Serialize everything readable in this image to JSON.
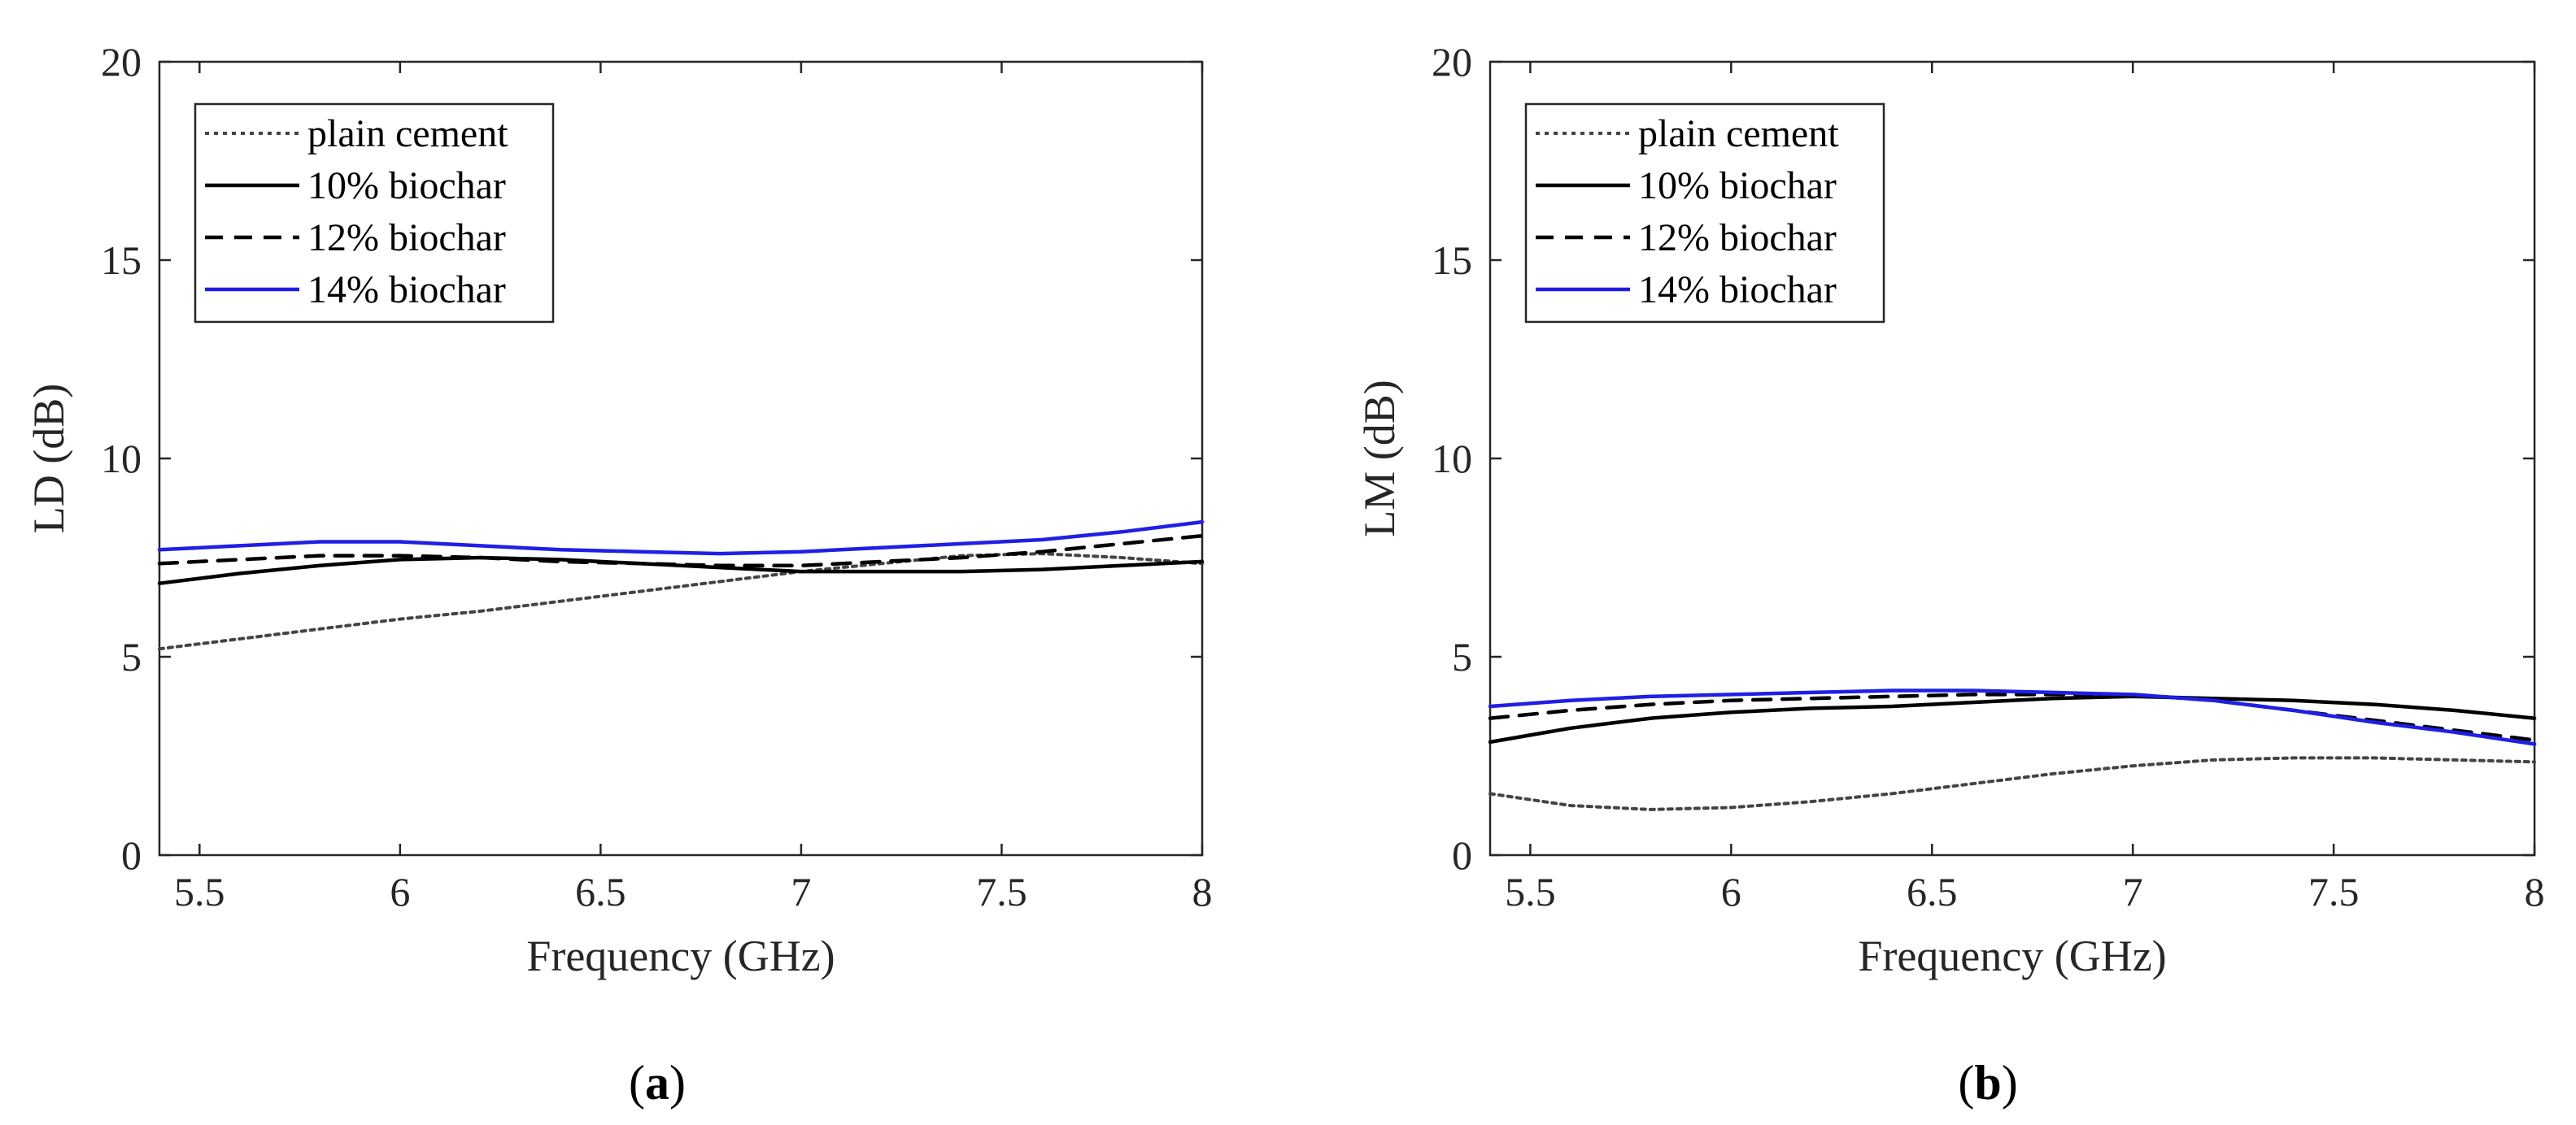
{
  "chart_data": [
    {
      "type": "line",
      "panel": "a",
      "caption": "a",
      "xlabel": "Frequency (GHz)",
      "ylabel": "LD (dB)",
      "xlim": [
        5.4,
        8
      ],
      "ylim": [
        0,
        20
      ],
      "xticks": [
        "5.5",
        "6",
        "6.5",
        "7",
        "7.5",
        "8"
      ],
      "yticks": [
        "0",
        "5",
        "10",
        "15",
        "20"
      ],
      "legend_position": "top-left",
      "x": [
        5.4,
        5.6,
        5.8,
        6.0,
        6.2,
        6.4,
        6.6,
        6.8,
        7.0,
        7.2,
        7.4,
        7.6,
        7.8,
        8.0
      ],
      "series": [
        {
          "name": "plain cement",
          "style": "dotted",
          "color": "#444444",
          "values": [
            5.2,
            5.45,
            5.7,
            5.95,
            6.15,
            6.4,
            6.65,
            6.9,
            7.15,
            7.35,
            7.55,
            7.6,
            7.5,
            7.35
          ]
        },
        {
          "name": "10% biochar",
          "style": "solid",
          "color": "#000000",
          "values": [
            6.85,
            7.1,
            7.3,
            7.45,
            7.5,
            7.45,
            7.35,
            7.25,
            7.15,
            7.15,
            7.15,
            7.2,
            7.3,
            7.4
          ]
        },
        {
          "name": "12% biochar",
          "style": "dashed",
          "color": "#000000",
          "values": [
            7.35,
            7.45,
            7.55,
            7.55,
            7.5,
            7.4,
            7.35,
            7.3,
            7.3,
            7.4,
            7.5,
            7.65,
            7.85,
            8.05
          ]
        },
        {
          "name": "14% biochar",
          "style": "solid",
          "color": "#1f1fe6",
          "values": [
            7.7,
            7.8,
            7.9,
            7.9,
            7.8,
            7.7,
            7.65,
            7.6,
            7.65,
            7.75,
            7.85,
            7.95,
            8.15,
            8.4
          ]
        }
      ]
    },
    {
      "type": "line",
      "panel": "b",
      "caption": "b",
      "xlabel": "Frequency (GHz)",
      "ylabel": "LM (dB)",
      "xlim": [
        5.4,
        8
      ],
      "ylim": [
        0,
        20
      ],
      "xticks": [
        "5.5",
        "6",
        "6.5",
        "7",
        "7.5",
        "8"
      ],
      "yticks": [
        "0",
        "5",
        "10",
        "15",
        "20"
      ],
      "legend_position": "top-left",
      "x": [
        5.4,
        5.6,
        5.8,
        6.0,
        6.2,
        6.4,
        6.6,
        6.8,
        7.0,
        7.2,
        7.4,
        7.6,
        7.8,
        8.0
      ],
      "series": [
        {
          "name": "plain cement",
          "style": "dotted",
          "color": "#444444",
          "values": [
            1.55,
            1.25,
            1.15,
            1.2,
            1.35,
            1.55,
            1.8,
            2.05,
            2.25,
            2.4,
            2.45,
            2.45,
            2.4,
            2.35
          ]
        },
        {
          "name": "10% biochar",
          "style": "solid",
          "color": "#000000",
          "values": [
            2.85,
            3.2,
            3.45,
            3.6,
            3.7,
            3.75,
            3.85,
            3.95,
            4.0,
            3.95,
            3.9,
            3.8,
            3.65,
            3.45
          ]
        },
        {
          "name": "12% biochar",
          "style": "dashed",
          "color": "#000000",
          "values": [
            3.45,
            3.65,
            3.8,
            3.9,
            3.95,
            4.0,
            4.05,
            4.05,
            4.05,
            3.9,
            3.65,
            3.4,
            3.15,
            2.9
          ]
        },
        {
          "name": "14% biochar",
          "style": "solid",
          "color": "#1f1fe6",
          "values": [
            3.75,
            3.9,
            4.0,
            4.05,
            4.1,
            4.15,
            4.15,
            4.1,
            4.05,
            3.9,
            3.65,
            3.35,
            3.1,
            2.8
          ]
        }
      ]
    }
  ]
}
